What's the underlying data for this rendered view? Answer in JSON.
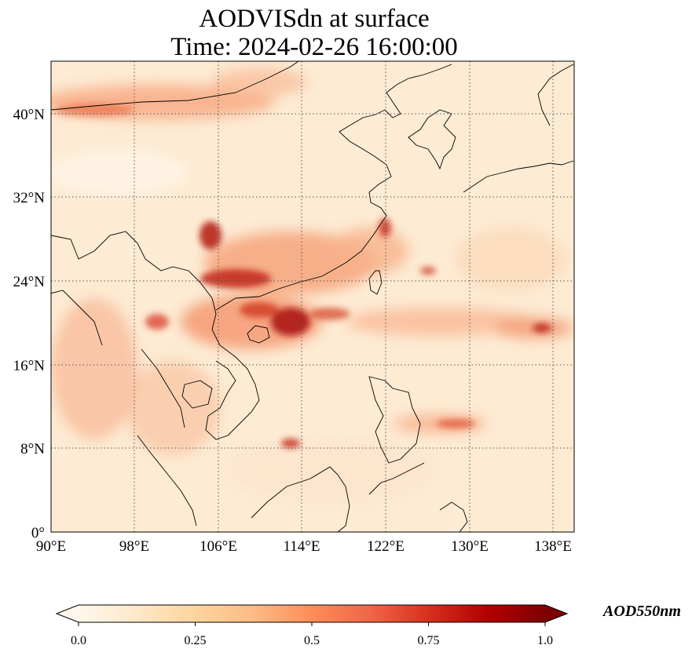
{
  "title": {
    "line1": "AODVISdn at surface",
    "line2": "Time: 2024-02-26 16:00:00"
  },
  "map": {
    "lon_ticks": [
      "90°E",
      "98°E",
      "106°E",
      "114°E",
      "122°E",
      "130°E",
      "138°E"
    ],
    "lat_ticks": [
      "0°",
      "8°N",
      "16°N",
      "24°N",
      "32°N",
      "40°N"
    ],
    "extent": {
      "lon_min": 90,
      "lon_max": 140,
      "lat_min": 0,
      "lat_max": 45
    },
    "gridlines": true,
    "colormap": "OrRd"
  },
  "colorbar": {
    "label": "AOD550nm",
    "ticks": [
      "0.0",
      "0.25",
      "0.5",
      "0.75",
      "1.0"
    ],
    "range": [
      0.0,
      1.0
    ],
    "extend": "both",
    "colors": [
      "#fff7ec",
      "#fee8c8",
      "#fdd49e",
      "#fdbb84",
      "#fc8d59",
      "#ef6548",
      "#d7301f",
      "#b30000",
      "#7f0000"
    ]
  }
}
